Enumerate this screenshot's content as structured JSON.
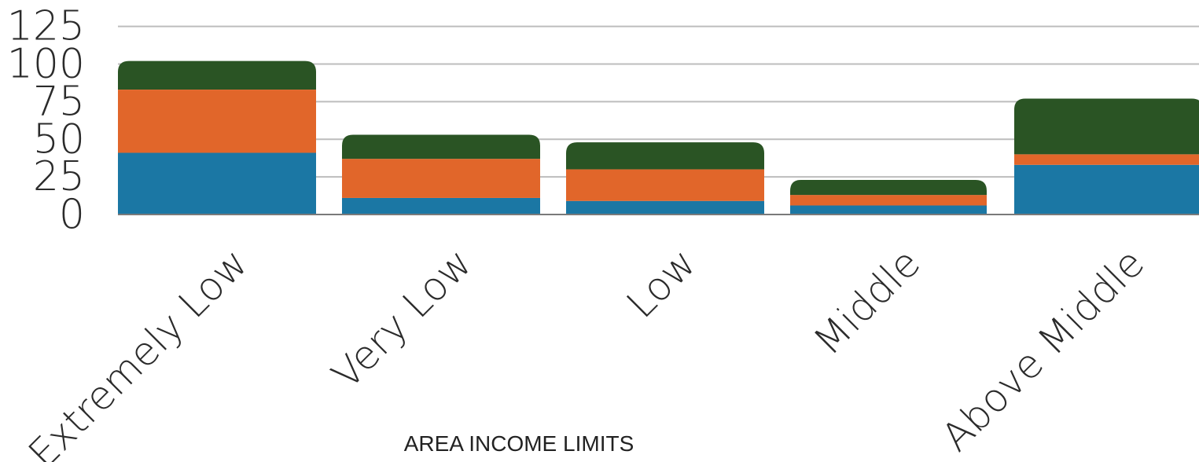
{
  "chart_data": {
    "type": "bar",
    "stacked": true,
    "title": "",
    "xlabel": "AREA INCOME LIMITS",
    "ylabel": "",
    "ylim": [
      0,
      125
    ],
    "yticks": [
      0,
      25,
      50,
      75,
      100,
      125
    ],
    "grid": true,
    "legend": "none",
    "categories": [
      "Extremely Low",
      "Very Low",
      "Low",
      "Middle",
      "Above Middle"
    ],
    "series": [
      {
        "color": "#1b77a4",
        "values": [
          41,
          11,
          9,
          6,
          33
        ]
      },
      {
        "color": "#e1662a",
        "values": [
          42,
          26,
          21,
          7,
          7
        ]
      },
      {
        "color": "#2a5424",
        "values": [
          19,
          16,
          18,
          10,
          37
        ]
      }
    ]
  }
}
